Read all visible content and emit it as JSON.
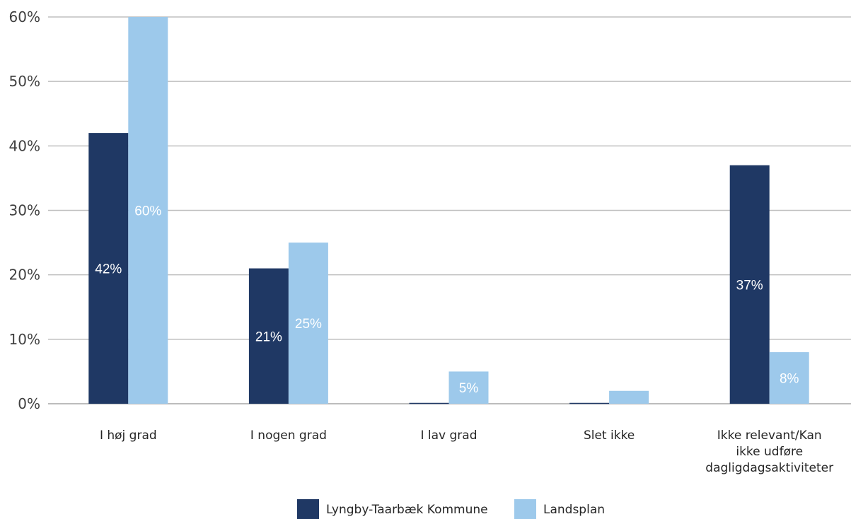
{
  "chart_data": {
    "type": "bar",
    "title": "",
    "xlabel": "",
    "ylabel": "",
    "ylim": [
      0,
      60
    ],
    "y_ticks": [
      "0%",
      "10%",
      "20%",
      "30%",
      "40%",
      "50%",
      "60%"
    ],
    "grid": true,
    "legend_position": "bottom",
    "categories": [
      [
        "I høj grad"
      ],
      [
        "I nogen grad"
      ],
      [
        "I lav grad"
      ],
      [
        "Slet ikke"
      ],
      [
        "Ikke relevant/Kan",
        "ikke udføre",
        "dagligdagsaktiviteter"
      ]
    ],
    "series": [
      {
        "name": "Lyngby-Taarbæk Kommune",
        "color": "#1f3864",
        "label_color": "#ffffff",
        "values": [
          42,
          21,
          0,
          0,
          37
        ],
        "labels": [
          "42%",
          "21%",
          "",
          "",
          "37%"
        ]
      },
      {
        "name": "Landsplan",
        "color": "#9dc9eb",
        "label_color": "#ffffff",
        "values": [
          60,
          25,
          5,
          2,
          8
        ],
        "labels": [
          "60%",
          "25%",
          "5%",
          "",
          "8%"
        ]
      }
    ]
  }
}
